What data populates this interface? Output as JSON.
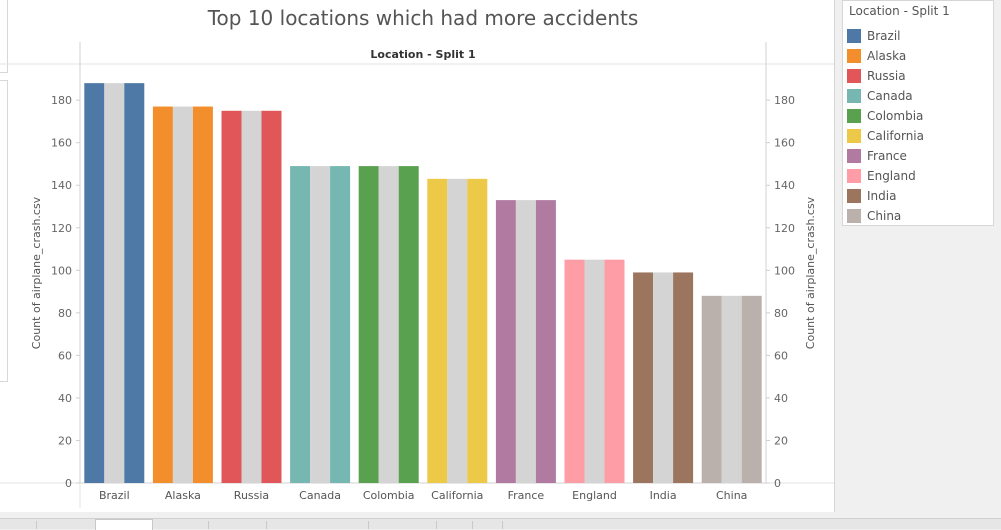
{
  "title": "Top 10 locations which had more accidents",
  "legend": {
    "title": "Location - Split 1",
    "items": [
      {
        "label": "Brazil",
        "color": "#4e79a7"
      },
      {
        "label": "Alaska",
        "color": "#f28e2b"
      },
      {
        "label": "Russia",
        "color": "#e15759"
      },
      {
        "label": "Canada",
        "color": "#76b7b2"
      },
      {
        "label": "Colombia",
        "color": "#59a14f"
      },
      {
        "label": "California",
        "color": "#edc948"
      },
      {
        "label": "France",
        "color": "#b07aa1"
      },
      {
        "label": "England",
        "color": "#ff9da7"
      },
      {
        "label": "India",
        "color": "#9c755f"
      },
      {
        "label": "China",
        "color": "#bab0ac"
      }
    ]
  },
  "chart_data": {
    "type": "bar",
    "title": "Top 10 locations which had more accidents",
    "header": "Location - Split 1",
    "categories": [
      "Brazil",
      "Alaska",
      "Russia",
      "Canada",
      "Colombia",
      "California",
      "France",
      "England",
      "India",
      "China"
    ],
    "values": [
      188,
      177,
      175,
      149,
      149,
      143,
      133,
      105,
      99,
      88
    ],
    "colors": [
      "#4e79a7",
      "#f28e2b",
      "#e15759",
      "#76b7b2",
      "#59a14f",
      "#edc948",
      "#b07aa1",
      "#ff9da7",
      "#9c755f",
      "#bab0ac"
    ],
    "dual_axis_color": "#d4d4d4",
    "ylabel": "Count of airplane_crash.csv",
    "ylabel_right": "Count of airplane_crash.csv",
    "yticks": [
      0,
      20,
      40,
      60,
      80,
      100,
      120,
      140,
      160,
      180
    ],
    "ylim": [
      0,
      197
    ],
    "grid": false
  }
}
